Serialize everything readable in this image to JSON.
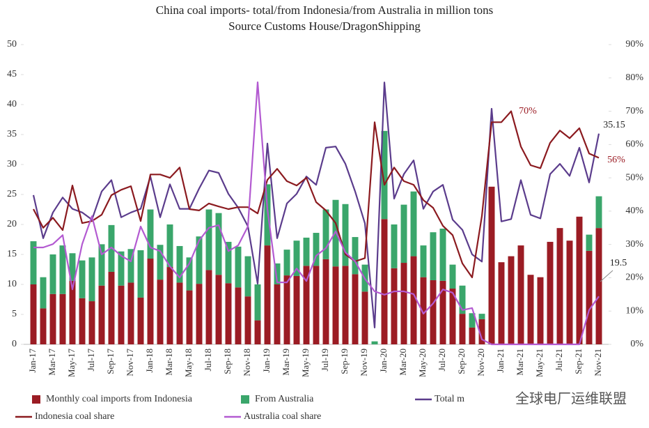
{
  "chart_data": {
    "type": "bar",
    "title": "China coal imports- total/from Indonesia/from Australia in million tons",
    "subtitle": "Source Customs House/DragonShipping",
    "categories": [
      "Jan-17",
      null,
      "Mar-17",
      null,
      "May-17",
      null,
      "Jul-17",
      null,
      "Sep-17",
      null,
      "Nov-17",
      null,
      "Jan-18",
      null,
      "Mar-18",
      null,
      "May-18",
      null,
      "Jul-18",
      null,
      "Sep-18",
      null,
      "Nov-18",
      null,
      "Jan-19",
      null,
      "Mar-19",
      null,
      "May-19",
      null,
      "Jul-19",
      null,
      "Sep-19",
      null,
      "Nov-19",
      null,
      "Jan-20",
      null,
      "Mar-20",
      null,
      "May-20",
      null,
      "Jul-20",
      null,
      "Sep-20",
      null,
      "Nov-20",
      null,
      "Jan-21",
      null,
      "Mar-21",
      null,
      "May-21",
      null,
      "Jul-21",
      null,
      "Sep-21",
      null,
      "Nov-21"
    ],
    "series": [
      {
        "name": "Monthly coal imports from Indonesia",
        "type": "bar",
        "color": "#9b1c24",
        "values": [
          10,
          6,
          8.4,
          8.4,
          10.6,
          7.7,
          7.2,
          9.8,
          12.1,
          9.8,
          10.3,
          7.8,
          14.3,
          10.8,
          12.9,
          10.3,
          9,
          10.1,
          12.4,
          11.6,
          10.2,
          9.5,
          8,
          4,
          16.5,
          10,
          11.5,
          11.4,
          13.1,
          13.1,
          14.2,
          13,
          13.1,
          11.7,
          8.8,
          0,
          20.9,
          12.7,
          13.6,
          14.7,
          11.2,
          10.7,
          10.6,
          9.3,
          5.1,
          2.8,
          4.2,
          26.3,
          13.7,
          14.7,
          16.5,
          11.6,
          11.2,
          17.1,
          19.4,
          17.3,
          21.3,
          15.6,
          19.4
        ]
      },
      {
        "name": "From Australia",
        "type": "bar",
        "color": "#3aa66b",
        "values": [
          7.2,
          5.2,
          6.6,
          8.1,
          4.6,
          6.3,
          7.3,
          6.9,
          7.8,
          5.7,
          5.6,
          7.9,
          8.2,
          5.8,
          7.1,
          6.1,
          5.5,
          7.9,
          10.1,
          10.3,
          6.9,
          6.8,
          6.7,
          6,
          10.2,
          3.5,
          4.3,
          5.9,
          4.7,
          5.5,
          8.3,
          11.1,
          10.3,
          6.2,
          4.5,
          0.5,
          14.7,
          7.3,
          9.7,
          10.8,
          5.3,
          8,
          8.7,
          4,
          4.7,
          2.4,
          0.9,
          0,
          0,
          0,
          0,
          0,
          0,
          0,
          0,
          0,
          0,
          2.7,
          5.3
        ]
      },
      {
        "name": "Total m",
        "type": "line",
        "color": "#5b3c8c",
        "values": [
          24.9,
          17.7,
          22,
          24.5,
          22.6,
          22,
          20.8,
          25.5,
          27.4,
          21.2,
          22,
          22.6,
          28,
          21.2,
          26.7,
          22.6,
          22.6,
          26,
          29,
          28.6,
          25.1,
          22.8,
          19.7,
          10.1,
          33.5,
          17.7,
          23.5,
          25.1,
          28,
          26.6,
          32.8,
          33,
          30.1,
          25.5,
          20.2,
          2.8,
          43.7,
          24.3,
          28.4,
          30.7,
          22.6,
          25.5,
          26.6,
          20.8,
          19.1,
          15,
          13.8,
          39.3,
          20.5,
          20.9,
          27.4,
          21.6,
          21,
          28.4,
          30.1,
          28.1,
          32.8,
          27,
          35.15
        ]
      },
      {
        "name": "Indonesia coal share",
        "type": "line",
        "axis": "y2",
        "color": "#8b1a1f",
        "values": [
          40.6,
          35,
          38,
          34.3,
          47.7,
          36.4,
          37,
          38.9,
          44.8,
          46.4,
          47.5,
          37,
          51,
          51,
          50,
          53.1,
          40.6,
          40.2,
          42.3,
          41.4,
          40.6,
          41.2,
          41.2,
          39.3,
          49.4,
          52.7,
          49,
          47.7,
          50,
          42.7,
          40.2,
          36.4,
          27,
          24.9,
          25.9,
          66.7,
          47.9,
          53.1,
          49,
          47.9,
          43.3,
          41,
          35.6,
          32.8,
          24.3,
          20.1,
          38.5,
          66.7,
          66.7,
          70,
          59.4,
          53.8,
          52.9,
          60.5,
          64.2,
          61.9,
          64.9,
          57.3,
          56
        ]
      },
      {
        "name": "Australia coal share",
        "type": "line",
        "axis": "y2",
        "color": "#b35ad1",
        "values": [
          29.1,
          29.1,
          30.1,
          32.8,
          16.5,
          30.1,
          38.5,
          27,
          29.1,
          26.6,
          24.9,
          35.4,
          29.1,
          28,
          23.4,
          20.1,
          24.3,
          31.2,
          35,
          35.8,
          28,
          29.7,
          35.4,
          78.7,
          40.6,
          18.6,
          18.6,
          22.8,
          19,
          26.6,
          28.9,
          33.9,
          27.6,
          24.9,
          19.7,
          15.9,
          14.9,
          15.9,
          15.9,
          15.1,
          9.2,
          12.3,
          16.5,
          15.5,
          10.3,
          10.9,
          1.5,
          0,
          0,
          0,
          0,
          0,
          0,
          0,
          0,
          0,
          0,
          10.3,
          14.4
        ]
      }
    ],
    "ylim": [
      0,
      50
    ],
    "yticks": [
      0,
      5,
      10,
      15,
      20,
      25,
      30,
      35,
      40,
      45,
      50
    ],
    "y2lim": [
      0,
      90
    ],
    "y2ticks": [
      {
        "value": 0,
        "label": "0%"
      },
      {
        "value": 10,
        "label": "10%"
      },
      {
        "value": 20,
        "label": "20%"
      },
      {
        "value": 30,
        "label": "30%"
      },
      {
        "value": 40,
        "label": "40%"
      },
      {
        "value": 50,
        "label": "50%"
      },
      {
        "value": 60,
        "label": "60%"
      },
      {
        "value": 70,
        "label": "70%"
      },
      {
        "value": 80,
        "label": "80%"
      },
      {
        "value": 90,
        "label": "90%"
      }
    ],
    "grid": false,
    "annotations": [
      "70%",
      "56%",
      "35.15",
      "19.5"
    ],
    "watermark": "全球电厂运维联盟"
  }
}
